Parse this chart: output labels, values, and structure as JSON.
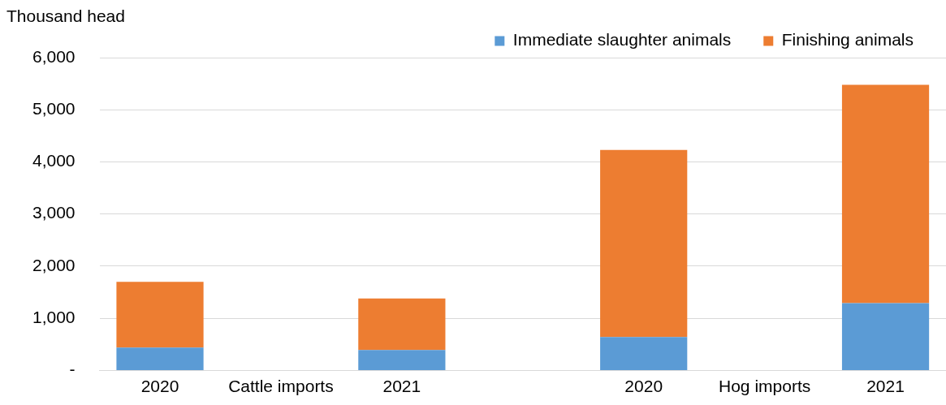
{
  "chart_data": {
    "type": "bar",
    "stacked": true,
    "ylabel": "Thousand head",
    "categories": [
      "2020",
      "Cattle imports",
      "2021",
      null,
      "2020",
      "Hog imports",
      "2021"
    ],
    "series": [
      {
        "name": "Immediate slaughter animals",
        "color": "#5b9bd5",
        "values": [
          440,
          null,
          390,
          null,
          640,
          null,
          1290
        ]
      },
      {
        "name": "Finishing animals",
        "color": "#ed7d31",
        "values": [
          1260,
          null,
          990,
          null,
          3590,
          null,
          4190
        ]
      }
    ],
    "ylim": [
      0,
      6000
    ],
    "yticks": [
      {
        "value": 0,
        "label": "-"
      },
      {
        "value": 1000,
        "label": "1,000"
      },
      {
        "value": 2000,
        "label": "2,000"
      },
      {
        "value": 3000,
        "label": "3,000"
      },
      {
        "value": 4000,
        "label": "4,000"
      },
      {
        "value": 5000,
        "label": "5,000"
      },
      {
        "value": 6000,
        "label": "6,000"
      }
    ],
    "grid": "y",
    "legend": "top right"
  }
}
